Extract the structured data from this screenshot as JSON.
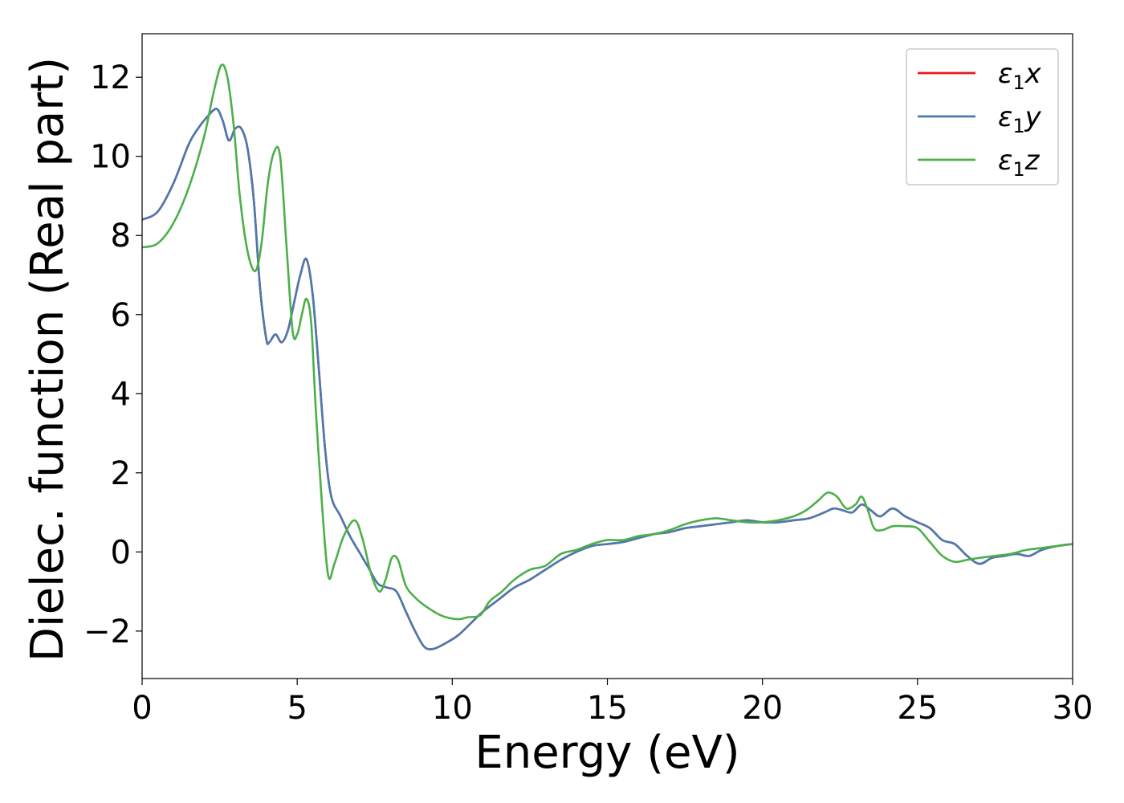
{
  "chart_data": {
    "type": "line",
    "title": "",
    "xlabel": "Energy (eV)",
    "ylabel": "Dielec. function (Real part)",
    "xlim": [
      0,
      30
    ],
    "ylim": [
      -3.2,
      13.1
    ],
    "xticks": [
      0,
      5,
      10,
      15,
      20,
      25,
      30
    ],
    "xtick_labels": [
      "0",
      "5",
      "10",
      "15",
      "20",
      "25",
      "30"
    ],
    "yticks": [
      -2,
      0,
      2,
      4,
      6,
      8,
      10,
      12
    ],
    "ytick_labels": [
      "−2",
      "0",
      "2",
      "4",
      "6",
      "8",
      "10",
      "12"
    ],
    "grid": false,
    "legend_position": "top-right",
    "series": [
      {
        "name": "ε₁x",
        "legend_base": "ε",
        "legend_sub": "1",
        "legend_tail": "x",
        "color": "#e41a1c",
        "x": [
          0,
          0.5,
          1,
          1.5,
          1.8,
          2.1,
          2.4,
          2.6,
          2.8,
          3.0,
          3.2,
          3.4,
          3.6,
          3.8,
          4.0,
          4.1,
          4.3,
          4.5,
          4.7,
          4.9,
          5.1,
          5.3,
          5.5,
          5.7,
          5.9,
          6.1,
          6.4,
          6.7,
          7.0,
          7.3,
          7.6,
          7.9,
          8.2,
          8.5,
          8.8,
          9.1,
          9.4,
          9.8,
          10.2,
          10.6,
          11.0,
          11.5,
          12.0,
          12.5,
          13.0,
          13.5,
          14.0,
          14.5,
          15.0,
          15.5,
          16.0,
          16.5,
          17.0,
          17.5,
          18.0,
          18.5,
          19.0,
          19.5,
          20.0,
          20.5,
          21.0,
          21.5,
          22.0,
          22.3,
          22.6,
          22.9,
          23.2,
          23.5,
          23.8,
          24.2,
          24.6,
          25.0,
          25.4,
          25.8,
          26.2,
          26.6,
          27.0,
          27.4,
          27.8,
          28.2,
          28.6,
          29.0,
          29.5,
          30.0
        ],
        "y": [
          8.4,
          8.6,
          9.3,
          10.3,
          10.7,
          11.0,
          11.2,
          10.9,
          10.4,
          10.7,
          10.7,
          10.2,
          8.9,
          6.7,
          5.4,
          5.3,
          5.5,
          5.3,
          5.6,
          6.3,
          7.0,
          7.4,
          6.5,
          4.6,
          2.6,
          1.4,
          0.9,
          0.4,
          0.0,
          -0.4,
          -0.8,
          -0.9,
          -1.0,
          -1.5,
          -2.0,
          -2.4,
          -2.45,
          -2.3,
          -2.1,
          -1.8,
          -1.5,
          -1.2,
          -0.9,
          -0.7,
          -0.45,
          -0.2,
          0.0,
          0.15,
          0.2,
          0.25,
          0.35,
          0.45,
          0.5,
          0.6,
          0.65,
          0.7,
          0.75,
          0.8,
          0.75,
          0.75,
          0.8,
          0.85,
          1.0,
          1.1,
          1.05,
          1.0,
          1.2,
          1.05,
          0.9,
          1.1,
          0.9,
          0.75,
          0.6,
          0.3,
          0.2,
          -0.1,
          -0.3,
          -0.15,
          -0.1,
          -0.05,
          -0.1,
          0.05,
          0.15,
          0.2
        ]
      },
      {
        "name": "ε₁y",
        "legend_base": "ε",
        "legend_sub": "1",
        "legend_tail": "y",
        "color": "#4a7ab0",
        "x": [
          0,
          0.5,
          1,
          1.5,
          1.8,
          2.1,
          2.4,
          2.6,
          2.8,
          3.0,
          3.2,
          3.4,
          3.6,
          3.8,
          4.0,
          4.1,
          4.3,
          4.5,
          4.7,
          4.9,
          5.1,
          5.3,
          5.5,
          5.7,
          5.9,
          6.1,
          6.4,
          6.7,
          7.0,
          7.3,
          7.6,
          7.9,
          8.2,
          8.5,
          8.8,
          9.1,
          9.4,
          9.8,
          10.2,
          10.6,
          11.0,
          11.5,
          12.0,
          12.5,
          13.0,
          13.5,
          14.0,
          14.5,
          15.0,
          15.5,
          16.0,
          16.5,
          17.0,
          17.5,
          18.0,
          18.5,
          19.0,
          19.5,
          20.0,
          20.5,
          21.0,
          21.5,
          22.0,
          22.3,
          22.6,
          22.9,
          23.2,
          23.5,
          23.8,
          24.2,
          24.6,
          25.0,
          25.4,
          25.8,
          26.2,
          26.6,
          27.0,
          27.4,
          27.8,
          28.2,
          28.6,
          29.0,
          29.5,
          30.0
        ],
        "y": [
          8.4,
          8.6,
          9.3,
          10.3,
          10.7,
          11.0,
          11.2,
          10.9,
          10.4,
          10.7,
          10.7,
          10.2,
          8.9,
          6.7,
          5.4,
          5.3,
          5.5,
          5.3,
          5.6,
          6.3,
          7.0,
          7.4,
          6.5,
          4.6,
          2.6,
          1.4,
          0.9,
          0.4,
          0.0,
          -0.4,
          -0.8,
          -0.9,
          -1.0,
          -1.5,
          -2.0,
          -2.4,
          -2.45,
          -2.3,
          -2.1,
          -1.8,
          -1.5,
          -1.2,
          -0.9,
          -0.7,
          -0.45,
          -0.2,
          0.0,
          0.15,
          0.2,
          0.25,
          0.35,
          0.45,
          0.5,
          0.6,
          0.65,
          0.7,
          0.75,
          0.8,
          0.75,
          0.75,
          0.8,
          0.85,
          1.0,
          1.1,
          1.05,
          1.0,
          1.2,
          1.05,
          0.9,
          1.1,
          0.9,
          0.75,
          0.6,
          0.3,
          0.2,
          -0.1,
          -0.3,
          -0.15,
          -0.1,
          -0.05,
          -0.1,
          0.05,
          0.15,
          0.2
        ]
      },
      {
        "name": "ε₁z",
        "legend_base": "ε",
        "legend_sub": "1",
        "legend_tail": "z",
        "color": "#4daf4a",
        "x": [
          0,
          0.5,
          1,
          1.5,
          2.0,
          2.3,
          2.55,
          2.75,
          2.95,
          3.15,
          3.4,
          3.65,
          3.85,
          4.05,
          4.25,
          4.45,
          4.65,
          4.85,
          5.0,
          5.15,
          5.3,
          5.45,
          5.6,
          5.8,
          6.0,
          6.2,
          6.5,
          6.85,
          7.1,
          7.4,
          7.65,
          7.85,
          8.05,
          8.25,
          8.5,
          8.8,
          9.1,
          9.5,
          9.8,
          10.2,
          10.5,
          10.9,
          11.2,
          11.6,
          12.0,
          12.5,
          13.0,
          13.5,
          14.0,
          14.5,
          15.0,
          15.5,
          16.0,
          16.5,
          17.0,
          17.5,
          18.0,
          18.5,
          19.0,
          19.5,
          20.0,
          20.5,
          21.0,
          21.4,
          21.8,
          22.1,
          22.4,
          22.7,
          23.0,
          23.2,
          23.4,
          23.6,
          23.85,
          24.2,
          24.6,
          25.0,
          25.4,
          25.8,
          26.2,
          26.6,
          27.0,
          27.5,
          28.0,
          28.5,
          29.0,
          29.5,
          30.0
        ],
        "y": [
          7.7,
          7.8,
          8.3,
          9.2,
          10.5,
          11.6,
          12.3,
          12.0,
          10.8,
          9.0,
          7.6,
          7.1,
          7.8,
          9.3,
          10.1,
          10.0,
          7.8,
          5.6,
          5.5,
          6.0,
          6.4,
          5.8,
          3.6,
          1.2,
          -0.6,
          -0.3,
          0.4,
          0.8,
          0.35,
          -0.6,
          -1.0,
          -0.7,
          -0.15,
          -0.2,
          -0.85,
          -1.15,
          -1.35,
          -1.55,
          -1.65,
          -1.7,
          -1.65,
          -1.6,
          -1.25,
          -1.0,
          -0.7,
          -0.45,
          -0.35,
          -0.05,
          0.05,
          0.2,
          0.3,
          0.3,
          0.4,
          0.45,
          0.55,
          0.7,
          0.8,
          0.85,
          0.8,
          0.75,
          0.75,
          0.8,
          0.9,
          1.05,
          1.3,
          1.5,
          1.4,
          1.1,
          1.2,
          1.4,
          1.05,
          0.6,
          0.55,
          0.65,
          0.65,
          0.6,
          0.25,
          -0.1,
          -0.25,
          -0.2,
          -0.15,
          -0.1,
          -0.05,
          0.05,
          0.1,
          0.15,
          0.2
        ]
      }
    ]
  }
}
